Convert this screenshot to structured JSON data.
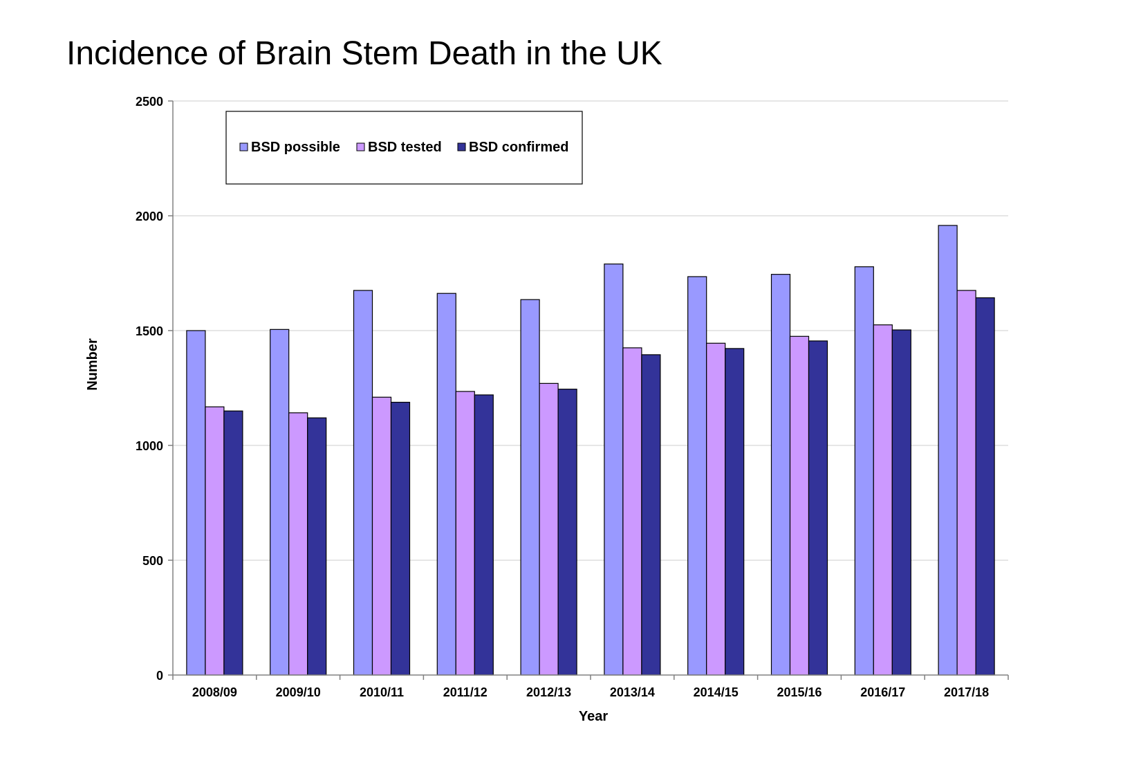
{
  "page": {
    "title": "Incidence of Brain Stem Death in the UK"
  },
  "chart_data": {
    "type": "bar",
    "title": "",
    "xlabel": "Year",
    "ylabel": "Number",
    "ylim": [
      0,
      2500
    ],
    "yticks": [
      0,
      500,
      1000,
      1500,
      2000,
      2500
    ],
    "grid": true,
    "legend_position": "top-left",
    "categories": [
      "2008/09",
      "2009/10",
      "2010/11",
      "2011/12",
      "2012/13",
      "2013/14",
      "2014/15",
      "2015/16",
      "2016/17",
      "2017/18"
    ],
    "series": [
      {
        "name": "BSD possible",
        "color": "#9999FF",
        "values": [
          1500,
          1505,
          1675,
          1662,
          1635,
          1790,
          1735,
          1745,
          1778,
          1958
        ]
      },
      {
        "name": "BSD tested",
        "color": "#CC99FF",
        "values": [
          1168,
          1142,
          1210,
          1235,
          1270,
          1425,
          1445,
          1475,
          1525,
          1675
        ]
      },
      {
        "name": "BSD confirmed",
        "color": "#333399",
        "values": [
          1150,
          1120,
          1188,
          1220,
          1245,
          1395,
          1422,
          1455,
          1503,
          1643
        ]
      }
    ]
  }
}
